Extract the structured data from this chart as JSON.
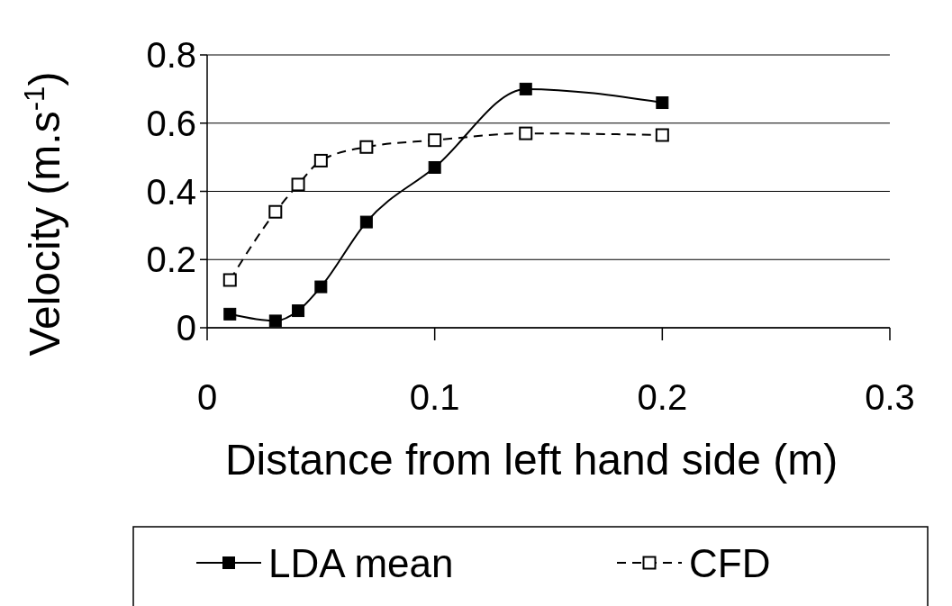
{
  "chart_data": {
    "type": "line",
    "xlabel": "Distance from left hand side (m)",
    "ylabel": "Velocity (m.s$^{-1}$)",
    "xlim": [
      0,
      0.3
    ],
    "xticks": [
      0,
      0.1,
      0.2,
      0.3
    ],
    "ylim": [
      0,
      0.8
    ],
    "yticks": [
      0,
      0.2,
      0.4,
      0.6,
      0.8
    ],
    "grid": "y",
    "legend": "bottom",
    "marker": "square",
    "series": [
      {
        "name": "LDA mean",
        "color": "#000000",
        "line_style": "solid",
        "x": [
          0.01,
          0.03,
          0.04,
          0.05,
          0.07,
          0.1,
          0.14,
          0.2
        ],
        "values": [
          0.04,
          0.02,
          0.05,
          0.12,
          0.31,
          0.47,
          0.7,
          0.66
        ]
      },
      {
        "name": "CFD",
        "color": "#000000",
        "line_style": "dashed",
        "x": [
          0.01,
          0.03,
          0.04,
          0.05,
          0.07,
          0.1,
          0.14,
          0.2
        ],
        "values": [
          0.14,
          0.34,
          0.42,
          0.49,
          0.53,
          0.55,
          0.57,
          0.565
        ]
      }
    ]
  }
}
